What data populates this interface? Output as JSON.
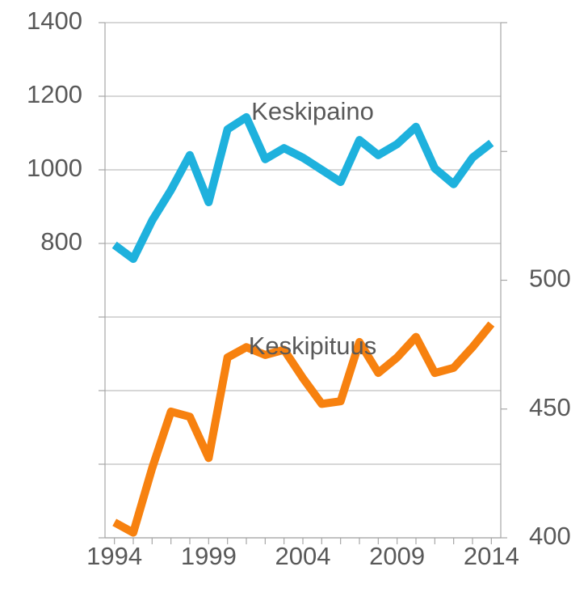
{
  "chart_data": {
    "type": "line",
    "x": [
      1994,
      1995,
      1996,
      1997,
      1998,
      1999,
      2000,
      2001,
      2002,
      2003,
      2004,
      2005,
      2006,
      2007,
      2008,
      2009,
      2010,
      2011,
      2012,
      2013,
      2014
    ],
    "xlim": [
      1993.5,
      2014.5
    ],
    "xticks": [
      1994,
      1999,
      2004,
      2009,
      2014
    ],
    "ylim": [
      0,
      1400
    ],
    "yticks": [
      {
        "value": 0,
        "label": null
      },
      {
        "value": 200,
        "label": null
      },
      {
        "value": 400,
        "label": null
      },
      {
        "value": 600,
        "label": null
      },
      800,
      1000,
      1200,
      1400
    ],
    "y2lim": [
      400,
      600
    ],
    "y2ticks": [
      400,
      450,
      500,
      {
        "value": 550,
        "label": null
      },
      {
        "value": 600,
        "label": null
      }
    ],
    "grid": true,
    "series": [
      {
        "name": "Keskipaino",
        "color": "#1eb1dd",
        "values": [
          796,
          758,
          862,
          945,
          1040,
          912,
          1110,
          1143,
          1029,
          1059,
          1033,
          1000,
          967,
          1081,
          1040,
          1070,
          1117,
          1004,
          961,
          1033,
          1073
        ]
      },
      {
        "name": "Keskipituus",
        "color": "#f7810f",
        "axis": "y2",
        "values": [
          406,
          402,
          427,
          449,
          447,
          431,
          470,
          474,
          471,
          473,
          462,
          452,
          453,
          476,
          464,
          470,
          478,
          464,
          466,
          474,
          483
        ]
      }
    ]
  }
}
